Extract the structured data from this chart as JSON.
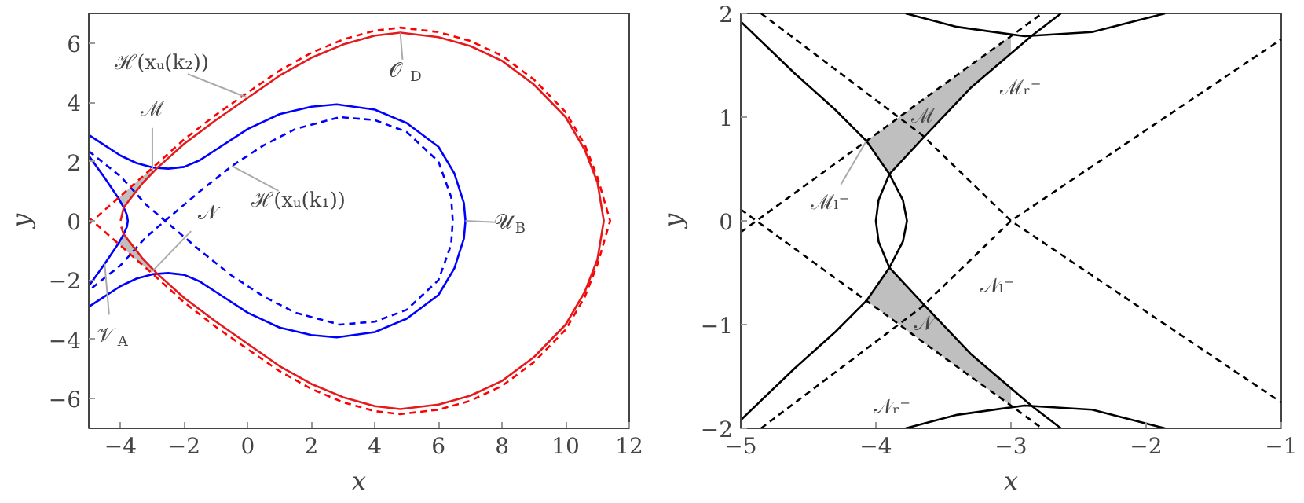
{
  "chart_data": [
    {
      "type": "line",
      "xlabel": "x",
      "ylabel": "y",
      "xlim": [
        -5,
        12
      ],
      "ylim": [
        -7,
        7
      ],
      "xticks": [
        -4,
        -2,
        0,
        2,
        4,
        6,
        8,
        10,
        12
      ],
      "yticks": [
        -6,
        -4,
        -2,
        0,
        2,
        4,
        6
      ],
      "series": [
        {
          "color": "#0000ff",
          "line_style": "solid",
          "x": [
            -5,
            -4.5,
            -4,
            -3.5,
            -3,
            -2.5,
            -2,
            -1.5,
            -1,
            0,
            1,
            2,
            2.8,
            4,
            5,
            6,
            6.5,
            6.8,
            6.85,
            6.8,
            6.5,
            6,
            5,
            4,
            2.8,
            2,
            1,
            0,
            -1,
            -1.5,
            -2,
            -2.5,
            -3,
            -3.5,
            -4,
            -4.5,
            -5
          ],
          "values": [
            2.9,
            2.55,
            2.2,
            1.95,
            1.8,
            1.76,
            1.82,
            2.05,
            2.4,
            3.1,
            3.6,
            3.85,
            3.93,
            3.75,
            3.3,
            2.5,
            1.6,
            0.6,
            0,
            -0.6,
            -1.6,
            -2.5,
            -3.3,
            -3.75,
            -3.93,
            -3.85,
            -3.6,
            -3.1,
            -2.4,
            -2.05,
            -1.82,
            -1.76,
            -1.8,
            -1.95,
            -2.2,
            -2.55,
            -2.9
          ]
        },
        {
          "color": "#0000ff",
          "line_style": "solid",
          "x": [
            -5,
            -4.5,
            -4.07,
            -3.9,
            -3.8,
            -3.77,
            -3.8,
            -3.9,
            -4.07,
            -4.5,
            -5
          ],
          "values": [
            2.2,
            1.45,
            0.77,
            0.45,
            0.2,
            0,
            -0.2,
            -0.45,
            -0.77,
            -1.45,
            -2.2
          ]
        },
        {
          "color": "#0000ff",
          "line_style": "dashed",
          "x": [
            -5,
            -4,
            -3.2,
            -2.6,
            -1.5,
            -0.5,
            0.5,
            1.5,
            2.9,
            4,
            5,
            6,
            6.4,
            6.45,
            6.4,
            6,
            5,
            4,
            2.9,
            1.5,
            0.5,
            -0.5,
            -1.5,
            -2.6,
            -3.2,
            -4,
            -5
          ],
          "values": [
            2.35,
            1.5,
            0.55,
            0,
            -1.0,
            -1.85,
            -2.55,
            -3.1,
            -3.5,
            -3.4,
            -3.0,
            -2.0,
            -0.8,
            0,
            0.8,
            2.0,
            3.0,
            3.4,
            3.5,
            3.1,
            2.55,
            1.85,
            1.0,
            0,
            -0.55,
            -1.5,
            -2.35
          ]
        },
        {
          "color": "#e41a1c",
          "line_style": "solid",
          "x": [
            -4.0,
            -3.9,
            -3.65,
            -3.3,
            -2.85,
            -2,
            -1,
            0,
            1,
            2,
            3,
            4,
            4.8,
            6,
            7,
            8,
            9,
            10,
            10.6,
            11,
            11.2,
            11,
            10.6,
            10,
            9,
            8,
            7,
            6,
            4.8,
            4,
            3,
            2,
            1,
            0,
            -1,
            -2,
            -2.85,
            -3.3,
            -3.65,
            -3.9,
            -3.98
          ],
          "values": [
            0,
            0.45,
            0.8,
            1.28,
            1.78,
            2.6,
            3.4,
            4.15,
            4.9,
            5.5,
            5.95,
            6.25,
            6.35,
            6.2,
            5.9,
            5.4,
            4.6,
            3.5,
            2.4,
            1.3,
            0,
            -1.3,
            -2.4,
            -3.5,
            -4.6,
            -5.4,
            -5.9,
            -6.2,
            -6.35,
            -6.25,
            -5.95,
            -5.5,
            -4.9,
            -4.15,
            -3.4,
            -2.6,
            -1.78,
            -1.28,
            -0.8,
            -0.45,
            -0.2
          ]
        },
        {
          "color": "#ff0000",
          "line_style": "dashed",
          "x": [
            -5,
            -4.07,
            -3.9,
            -3.65,
            -3.3,
            -3.0,
            -2,
            -1,
            0,
            1,
            2,
            3,
            4,
            4.8,
            6,
            7,
            8,
            9,
            10,
            10.6,
            11,
            11.4,
            11,
            10.6,
            10,
            9,
            8,
            7,
            6,
            4.8,
            4,
            3,
            2,
            1,
            0,
            -1,
            -2,
            -3.0,
            -3.3,
            -3.65,
            -3.9,
            -4.07,
            -5
          ],
          "values": [
            -0.11,
            0.77,
            0.93,
            1.17,
            1.5,
            1.78,
            2.75,
            3.58,
            4.33,
            5.07,
            5.67,
            6.12,
            6.42,
            6.52,
            6.37,
            6.07,
            5.57,
            4.77,
            3.67,
            2.57,
            1.47,
            0,
            -1.47,
            -2.57,
            -3.67,
            -4.77,
            -5.57,
            -6.07,
            -6.37,
            -6.52,
            -6.42,
            -6.12,
            -5.67,
            -5.07,
            -4.33,
            -3.58,
            -2.75,
            -1.78,
            -1.5,
            -1.17,
            -0.93,
            -0.77,
            0.11
          ],
          "lower": [
            null,
            0.77,
            0.45,
            0.8,
            1.28,
            1.62,
            null,
            null,
            null,
            null,
            null,
            null,
            null,
            null,
            null,
            null,
            null,
            null,
            null,
            null,
            null,
            null,
            null,
            null,
            null,
            null,
            null,
            null,
            null,
            null,
            null,
            null,
            null,
            null,
            null,
            null,
            null,
            -1.78,
            -1.5,
            -1.17,
            -0.93,
            -0.77,
            null
          ],
          "upper": [
            null,
            0.77,
            0.93,
            1.17,
            1.5,
            1.78,
            null,
            null,
            null,
            null,
            null,
            null,
            null,
            null,
            null,
            null,
            null,
            null,
            null,
            null,
            null,
            null,
            null,
            null,
            null,
            null,
            null,
            null,
            null,
            null,
            null,
            null,
            null,
            null,
            null,
            null,
            null,
            -1.62,
            -1.28,
            -0.8,
            -0.45,
            -0.77,
            null
          ]
        }
      ],
      "annotations": [
        {
          "text": "ℋ(xᵤ(k₂))",
          "x": 0,
          "y": 4.15
        },
        {
          "text": "ℳ",
          "x": -3.0,
          "y": 1.7
        },
        {
          "text": "ℋ(xᵤ(k₁))",
          "x": -0.5,
          "y": 1.85
        },
        {
          "text": "𝒩",
          "x": -3.0,
          "y": -1.7
        },
        {
          "text": "𝒪$_{D}$",
          "x": 4.8,
          "y": 6.35
        },
        {
          "text": "𝒰$_{B}$",
          "x": 6.85,
          "y": 0
        },
        {
          "text": "𝒱$_{A}$",
          "x": -4.5,
          "y": -1.45
        }
      ]
    },
    {
      "type": "line",
      "xlabel": "x",
      "ylabel": "y",
      "xlim": [
        -5,
        -1
      ],
      "ylim": [
        -2,
        2
      ],
      "xticks": [
        -5,
        -4,
        -3,
        -2,
        -1
      ],
      "yticks": [
        -2,
        -1,
        0,
        1,
        2
      ],
      "series": [
        {
          "color": "#000000",
          "line_style": "solid",
          "x": [
            -5,
            -4.6,
            -4.3,
            -4.07,
            -3.9,
            -3.8,
            -3.77,
            -3.8,
            -3.9,
            -4.07,
            -4.3,
            -4.6,
            -5
          ],
          "values": [
            1.92,
            1.42,
            1.07,
            0.77,
            0.45,
            0.2,
            0,
            -0.2,
            -0.45,
            -0.77,
            -1.07,
            -1.42,
            -1.92
          ]
        },
        {
          "color": "#000000",
          "line_style": "solid",
          "x": [
            -2.63,
            -2.85,
            -3.3,
            -3.65,
            -3.9,
            -3.98,
            -4.0,
            -3.98,
            -3.9,
            -3.65,
            -3.3,
            -2.85,
            -2.63
          ],
          "values": [
            2,
            1.78,
            1.28,
            0.8,
            0.45,
            0.2,
            0,
            -0.2,
            -0.45,
            -0.8,
            -1.28,
            -1.78,
            -2
          ]
        },
        {
          "color": "#000000",
          "line_style": "solid",
          "x": [
            -3.78,
            -3.4,
            -2.9,
            -2.4,
            -1.86
          ],
          "values": [
            2,
            1.87,
            1.78,
            1.82,
            2
          ]
        },
        {
          "color": "#000000",
          "line_style": "solid",
          "x": [
            -3.78,
            -3.4,
            -2.9,
            -2.4,
            -1.86
          ],
          "values": [
            -2,
            -1.87,
            -1.78,
            -1.82,
            -2
          ]
        },
        {
          "color": "#000000",
          "line_style": "dashed",
          "x": [
            -5,
            -4.07,
            -3.9,
            -3.65,
            -3.3,
            -3.0,
            -2.77
          ],
          "values": [
            -0.11,
            0.77,
            0.93,
            1.17,
            1.5,
            1.78,
            2
          ],
          "lower": [
            null,
            0.77,
            0.45,
            0.8,
            1.28,
            1.61,
            null
          ],
          "upper": [
            null,
            0.77,
            0.93,
            1.17,
            1.5,
            1.78,
            null
          ]
        },
        {
          "color": "#000000",
          "line_style": "dashed",
          "x": [
            -5,
            -4.07,
            -3.9,
            -3.65,
            -3.3,
            -3.0,
            -2.77
          ],
          "values": [
            0.11,
            -0.77,
            -0.93,
            -1.17,
            -1.5,
            -1.78,
            -2
          ],
          "lower": [
            null,
            -0.77,
            -0.93,
            -1.17,
            -1.5,
            -1.78,
            null
          ],
          "upper": [
            null,
            -0.77,
            -0.45,
            -0.8,
            -1.28,
            -1.61,
            null
          ]
        },
        {
          "color": "#000000",
          "line_style": "dashed",
          "x": [
            -4.85,
            -3.66,
            -3,
            -1
          ],
          "values": [
            2,
            0.83,
            0,
            -1.75
          ]
        },
        {
          "color": "#000000",
          "line_style": "dashed",
          "x": [
            -4.85,
            -3.66,
            -3,
            -1
          ],
          "values": [
            -2,
            -0.83,
            0,
            1.75
          ]
        }
      ],
      "annotations": [
        {
          "text": "ℳ",
          "x": -3.65,
          "y": 1.17
        },
        {
          "text": "ℳᵣ⁻",
          "x": -3.3,
          "y": 1.28
        },
        {
          "text": "ℳₗ⁻",
          "x": -4.07,
          "y": 0.77
        },
        {
          "text": "𝒩ₗ⁻",
          "x": -3.66,
          "y": -0.83
        },
        {
          "text": "𝒩",
          "x": -3.65,
          "y": -1.17
        },
        {
          "text": "𝒩ᵣ⁻",
          "x": -3.78,
          "y": -2
        }
      ]
    }
  ]
}
